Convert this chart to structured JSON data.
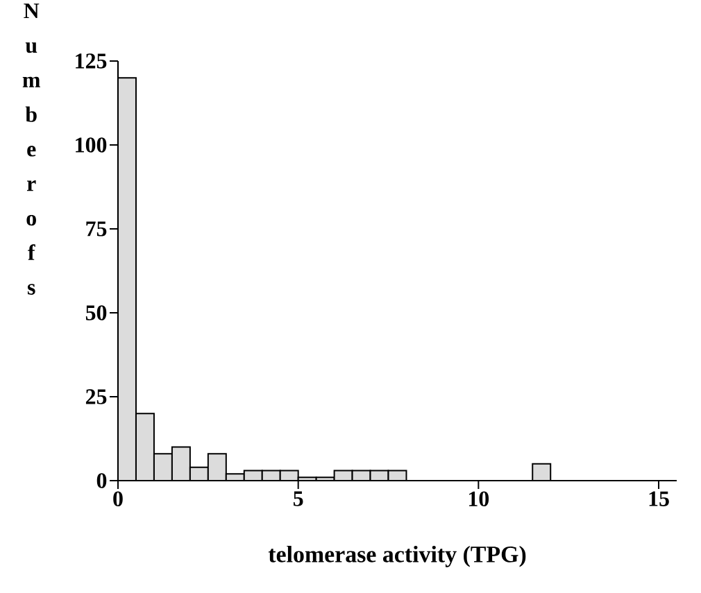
{
  "chart_data": {
    "type": "histogram",
    "xlabel": "telomerase activity (TPG)",
    "ylabel": "Numberofs",
    "bins": [
      0,
      0.5,
      1,
      1.5,
      2,
      2.5,
      3,
      3.5,
      4,
      4.5,
      5,
      5.5,
      6,
      6.5,
      7,
      7.5,
      8,
      8.5,
      9,
      9.5,
      10,
      10.5,
      11,
      11.5,
      12
    ],
    "values": [
      120,
      20,
      8,
      10,
      4,
      8,
      2,
      3,
      3,
      3,
      1,
      1,
      3,
      3,
      3,
      3,
      0,
      0,
      0,
      0,
      0,
      0,
      0,
      5
    ],
    "color": "#dcdcdc",
    "xlim": [
      0,
      15.5
    ],
    "xticks": [
      0,
      5,
      10,
      15
    ],
    "ylim": [
      0,
      125
    ],
    "yticks": [
      0,
      25,
      50,
      75,
      100,
      125
    ],
    "grid": false
  }
}
